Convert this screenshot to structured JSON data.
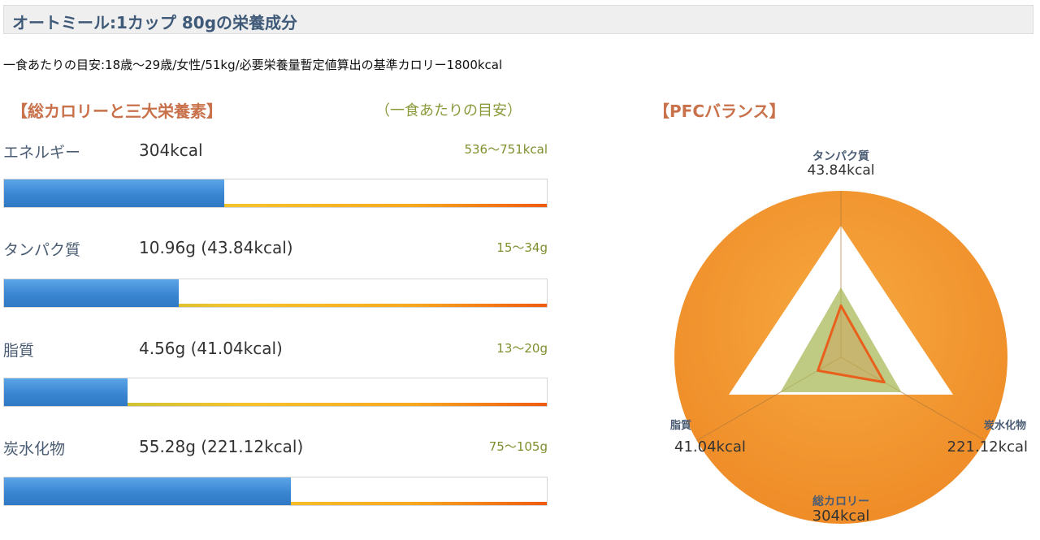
{
  "header": {
    "title": "オートミール:1カップ 80gの栄養成分"
  },
  "target_note": "一食あたりの目安:18歳〜29歳/女性/51kg/必要栄養量暫定値算出の基準カロリー1800kcal",
  "left_section": {
    "title": "【総カロリーと三大栄養素】",
    "note": "（一食あたりの目安）"
  },
  "right_section": {
    "title": "【PFCバランス】"
  },
  "nutrients": [
    {
      "label": "エネルギー",
      "value": "304kcal",
      "range": "536〜751kcal",
      "fill_fraction": 0.405
    },
    {
      "label": "タンパク質",
      "value": "10.96g (43.84kcal)",
      "range": "15〜34g",
      "fill_fraction": 0.322
    },
    {
      "label": "脂質",
      "value": "4.56g (41.04kcal)",
      "range": "13〜20g",
      "fill_fraction": 0.228
    },
    {
      "label": "炭水化物",
      "value": "55.28g (221.12kcal)",
      "range": "75〜105g",
      "fill_fraction": 0.528
    }
  ],
  "colors": {
    "header_text": "#3f5a78",
    "section_title": "#c8714a",
    "range_text": "#7f8f2d",
    "bar_blue": "#3a86d1",
    "pfc_orange": "#f29a38",
    "pfc_green": "#a9b85a",
    "pfc_actual": "#e8601c"
  },
  "chart_data": {
    "type": "radar",
    "title": "【PFCバランス】",
    "axes": [
      {
        "name": "タンパク質",
        "value_label": "43.84kcal",
        "value": 43.84,
        "position": "top"
      },
      {
        "name": "炭水化物",
        "value_label": "221.12kcal",
        "value": 221.12,
        "position": "bottom-right"
      },
      {
        "name": "総カロリー",
        "value_label": "304kcal",
        "value": 304,
        "position": "bottom"
      },
      {
        "name": "脂質",
        "value_label": "41.04kcal",
        "value": 41.04,
        "position": "bottom-left"
      }
    ],
    "series": [
      {
        "points": [
          0.31,
          0.3,
          0.16
        ]
      }
    ]
  }
}
